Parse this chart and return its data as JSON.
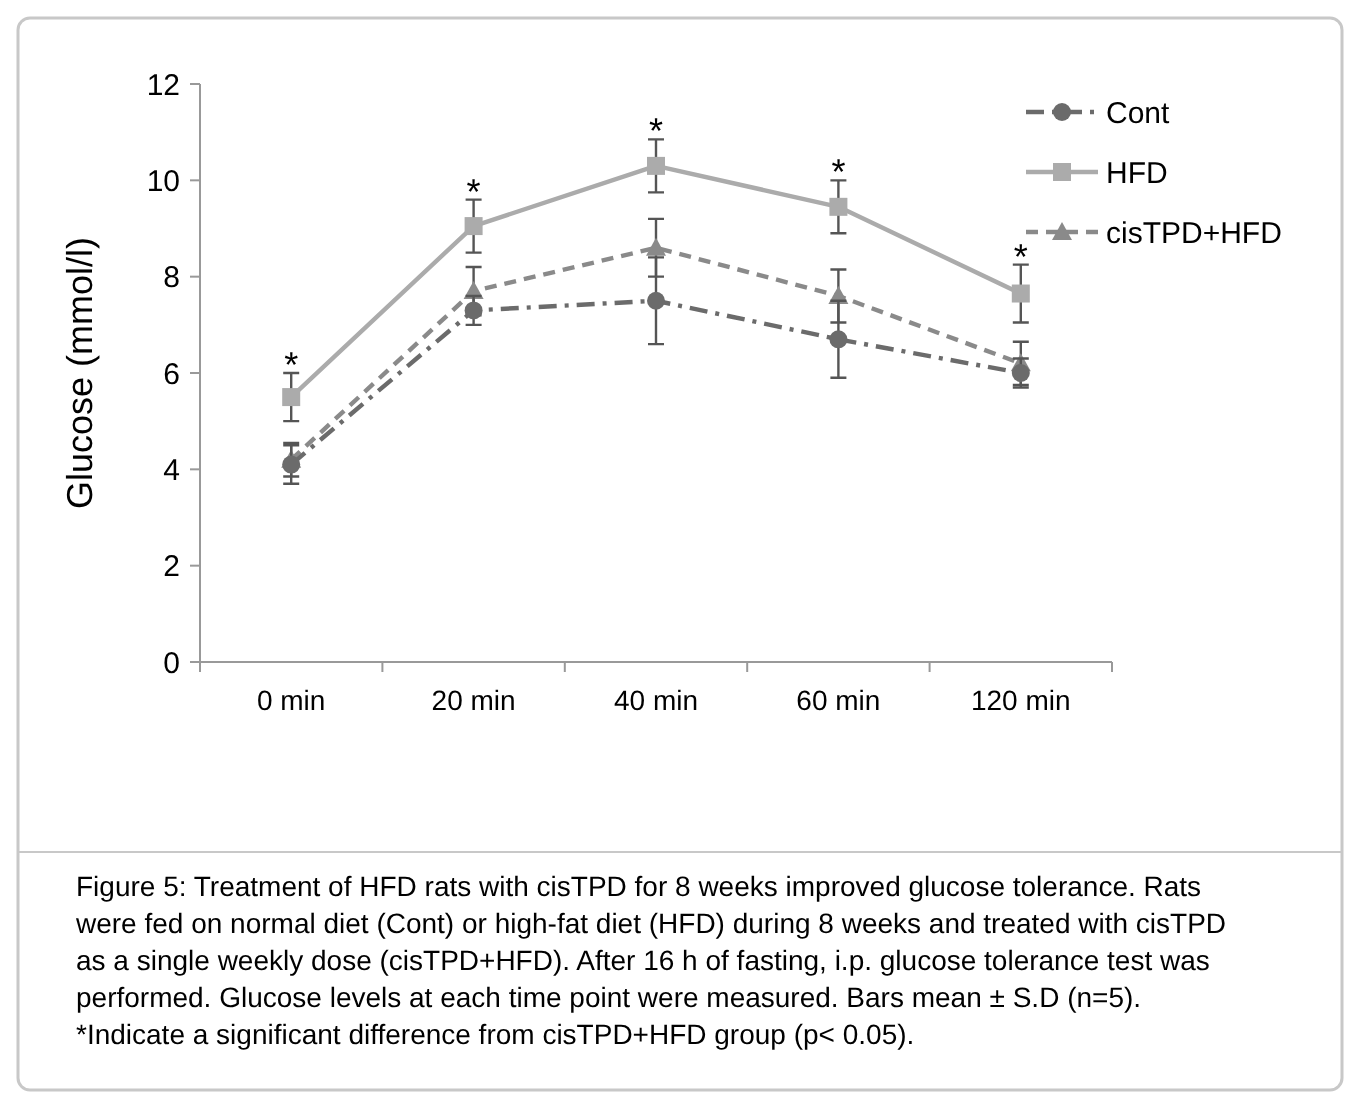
{
  "chart_data": {
    "type": "line",
    "ylabel": "Glucose (mmol/l)",
    "categories": [
      "0 min",
      "20 min",
      "40 min",
      "60 min",
      "120 min"
    ],
    "series": [
      {
        "name": "Cont",
        "color": "#6b6b6b",
        "marker": "circle",
        "line_style": "dashdot",
        "values": [
          4.1,
          7.3,
          7.5,
          6.7,
          6.0
        ],
        "errors": [
          0.4,
          0.3,
          0.9,
          0.8,
          0.3
        ]
      },
      {
        "name": "HFD",
        "color": "#ababab",
        "marker": "square",
        "line_style": "solid",
        "values": [
          5.5,
          9.05,
          10.3,
          9.45,
          7.65
        ],
        "errors": [
          0.5,
          0.55,
          0.55,
          0.55,
          0.6
        ]
      },
      {
        "name": "cisTPD+HFD",
        "color": "#8a8a8a",
        "marker": "triangle",
        "line_style": "dashed",
        "values": [
          4.2,
          7.7,
          8.6,
          7.6,
          6.2
        ],
        "errors": [
          0.35,
          0.5,
          0.6,
          0.55,
          0.45
        ]
      }
    ],
    "ylim": [
      0,
      12
    ],
    "yticks": [
      0,
      2,
      4,
      6,
      8,
      10,
      12
    ],
    "grid": false,
    "legend": "top right",
    "annotations": [
      {
        "text": "*",
        "x": "0 min",
        "y": 5.5
      },
      {
        "text": "*",
        "x": "20 min",
        "y": 9.05
      },
      {
        "text": "*",
        "x": "40 min",
        "y": 10.3
      },
      {
        "text": "*",
        "x": "60 min",
        "y": 9.45
      },
      {
        "text": "*",
        "x": "120 min",
        "y": 7.65
      },
      "Figure 5: Treatment of HFD rats with cisTPD for 8 weeks improved glucose tolerance. Rats were fed on normal diet (Cont) or high-fat diet (HFD) during 8 weeks and treated with cisTPD as a single weekly dose (cisTPD+HFD). After 16 h of fasting, i.p. glucose tolerance test was performed. Glucose levels at each time point were measured. Bars mean ± S.D (n=5). *Indicate a significant difference from cisTPD+HFD group (p< 0.05)."
    ]
  }
}
